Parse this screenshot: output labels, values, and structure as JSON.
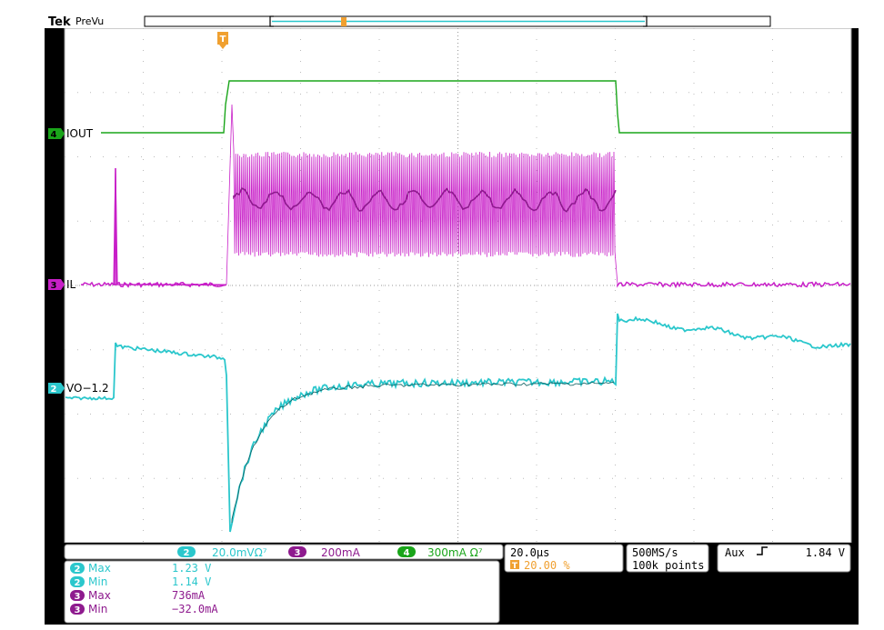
{
  "header": {
    "brand": "Tek",
    "mode": "PreVu"
  },
  "channel_markers": {
    "ch4": {
      "num": "4",
      "label": "IOUT",
      "color": "#1aa51a"
    },
    "ch3": {
      "num": "3",
      "label": "IL",
      "color": "#c81fc8"
    },
    "ch2": {
      "num": "2",
      "label": "VO−1.2",
      "color": "#2bc7cc"
    }
  },
  "trigger_marker": "T",
  "scale_bar": {
    "ch2": {
      "num": "2",
      "value": "20.0mVΩ⁷"
    },
    "ch3": {
      "num": "3",
      "value": "200mA"
    },
    "ch4": {
      "num": "4",
      "value": "300mA Ω⁷"
    }
  },
  "timebase": {
    "per_div": "20.0µs",
    "trigger_pos_icon": "T",
    "trigger_pos": "20.00 %"
  },
  "acquisition": {
    "rate": "500MS/s",
    "points": "100k points"
  },
  "trigger": {
    "source": "Aux",
    "slope_icon": "rising-edge-icon",
    "level": "1.84 V"
  },
  "measurements": [
    {
      "ch": "2",
      "name": "Max",
      "value": "1.23 V",
      "color": "#2bc7cc"
    },
    {
      "ch": "2",
      "name": "Min",
      "value": "1.14 V",
      "color": "#2bc7cc"
    },
    {
      "ch": "3",
      "name": "Max",
      "value": "736mA",
      "color": "#8e1a8e"
    },
    {
      "ch": "3",
      "name": "Min",
      "value": "−32.0mA",
      "color": "#8e1a8e"
    }
  ],
  "colors": {
    "ch2": "#2bc7cc",
    "ch3": "#c81fc8",
    "ch3_dark": "#8e1a8e",
    "ch4": "#1aa51a",
    "trigger": "#f0a030"
  }
}
